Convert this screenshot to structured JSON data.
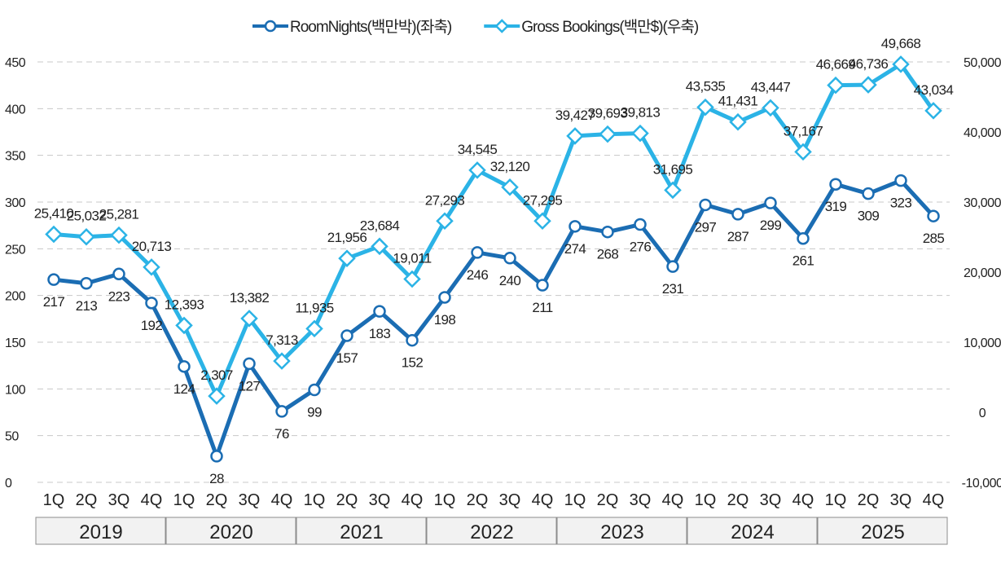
{
  "chart_data": {
    "type": "line",
    "categories": [
      "1Q",
      "2Q",
      "3Q",
      "4Q",
      "1Q",
      "2Q",
      "3Q",
      "4Q",
      "1Q",
      "2Q",
      "3Q",
      "4Q",
      "1Q",
      "2Q",
      "3Q",
      "4Q",
      "1Q",
      "2Q",
      "3Q",
      "4Q",
      "1Q",
      "2Q",
      "3Q",
      "4Q",
      "1Q",
      "2Q",
      "3Q",
      "4Q"
    ],
    "groups": [
      "2019",
      "2020",
      "2021",
      "2022",
      "2023",
      "2024",
      "2025"
    ],
    "series": [
      {
        "name": "RoomNights(백만박)(좌축)",
        "color": "#1b6db3",
        "marker": "circle",
        "values": [
          217,
          213,
          223,
          192,
          124,
          28,
          127,
          76,
          99,
          157,
          183,
          152,
          198,
          246,
          240,
          211,
          274,
          268,
          276,
          231,
          297,
          287,
          299,
          261,
          319,
          309,
          323,
          285
        ]
      },
      {
        "name": "Gross Bookings(백만$)(우축)",
        "color": "#2bb3e6",
        "marker": "diamond",
        "axis": "y2",
        "values": [
          25410,
          25032,
          25281,
          20713,
          12393,
          2307,
          13382,
          7313,
          11935,
          21956,
          23684,
          19011,
          27293,
          34545,
          32120,
          27295,
          39427,
          39693,
          39813,
          31695,
          43535,
          41431,
          43447,
          37167,
          46669,
          46736,
          49668,
          43034
        ],
        "value_labels": [
          "25,410",
          "25,032",
          "25,281",
          "20,713",
          "12,393",
          "2,307",
          "13,382",
          "7,313",
          "11,935",
          "21,956",
          "23,684",
          "19,011",
          "27,293",
          "34,545",
          "32,120",
          "27,295",
          "39,427",
          "39,693",
          "39,813",
          "31,695",
          "43,535",
          "41,431",
          "43,447",
          "37,167",
          "46,669",
          "46,736",
          "49,668",
          "43,034"
        ]
      }
    ],
    "ylim": [
      0,
      450
    ],
    "yticks": [
      0,
      50,
      100,
      150,
      200,
      250,
      300,
      350,
      400,
      450
    ],
    "y2lim": [
      -10000,
      50000
    ],
    "y2ticks": [
      {
        "value": -10000,
        "label": "-10,000"
      },
      0,
      {
        "value": 10000,
        "label": "10,000"
      },
      {
        "value": 20000,
        "label": "20,000"
      },
      {
        "value": 30000,
        "label": "30,000"
      },
      {
        "value": 40000,
        "label": "40,000"
      },
      {
        "value": 50000,
        "label": "50,000"
      }
    ],
    "grid": true,
    "legend": "top"
  }
}
